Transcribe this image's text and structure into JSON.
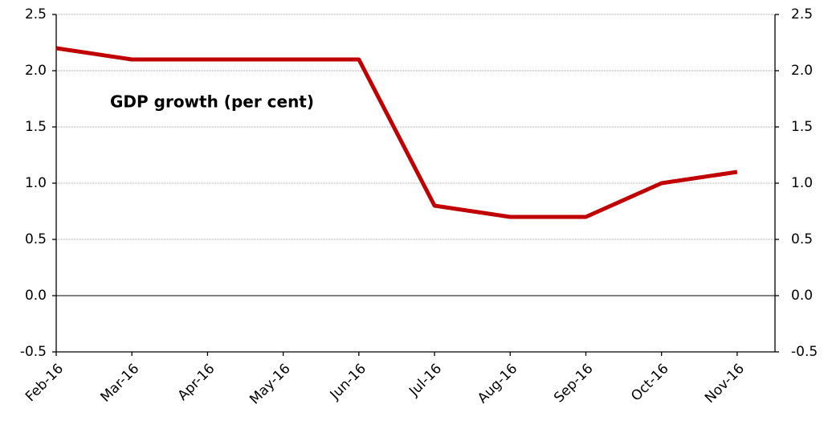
{
  "chart_data": {
    "type": "line",
    "annotation": "GDP growth (per cent)",
    "categories": [
      "Feb-16",
      "Mar-16",
      "Apr-16",
      "May-16",
      "Jun-16",
      "Jul-16",
      "Aug-16",
      "Sep-16",
      "Oct-16",
      "Nov-16"
    ],
    "values": [
      2.2,
      2.1,
      2.1,
      2.1,
      2.1,
      0.8,
      0.7,
      0.7,
      1.0,
      1.1
    ],
    "color": "#c00000",
    "ylim": [
      -0.5,
      2.5
    ],
    "yticks": [
      -0.5,
      {
        "value": 0,
        "label": "0.0"
      },
      0.5,
      {
        "value": 1,
        "label": "1.0"
      },
      1.5,
      {
        "value": 2,
        "label": "2.0"
      },
      2.5
    ],
    "y2lim": [
      -0.5,
      2.5
    ],
    "y2ticks": [
      -0.5,
      {
        "value": 0,
        "label": "0.0"
      },
      0.5,
      {
        "value": 1,
        "label": "1.0"
      },
      1.5,
      {
        "value": 2,
        "label": "2.0"
      },
      2.5
    ],
    "grid": true
  }
}
